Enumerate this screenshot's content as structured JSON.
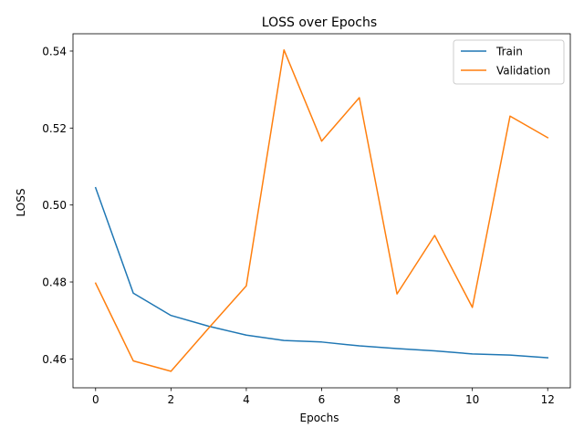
{
  "chart_data": {
    "type": "line",
    "title": "LOSS over Epochs",
    "xlabel": "Epochs",
    "ylabel": "LOSS",
    "x": [
      0,
      1,
      2,
      3,
      4,
      5,
      6,
      7,
      8,
      9,
      10,
      11,
      12
    ],
    "xlim": [
      -0.6,
      12.6
    ],
    "ylim": [
      0.4525,
      0.5445
    ],
    "xticks": [
      0,
      2,
      4,
      6,
      8,
      10,
      12
    ],
    "yticks": [
      0.46,
      0.48,
      0.5,
      0.52,
      0.54
    ],
    "xtick_labels": [
      "0",
      "2",
      "4",
      "6",
      "8",
      "10",
      "12"
    ],
    "ytick_labels": [
      "0.46",
      "0.48",
      "0.50",
      "0.52",
      "0.54"
    ],
    "grid": false,
    "legend_position": "top-right",
    "series": [
      {
        "name": "Train",
        "color": "#1f77b4",
        "values": [
          0.5045,
          0.4771,
          0.4713,
          0.4685,
          0.4662,
          0.4648,
          0.4644,
          0.4634,
          0.4627,
          0.4621,
          0.4613,
          0.461,
          0.4603
        ]
      },
      {
        "name": "Validation",
        "color": "#ff7f0e",
        "values": [
          0.4797,
          0.4595,
          0.4568,
          0.468,
          0.479,
          0.5403,
          0.5166,
          0.5279,
          0.4769,
          0.4921,
          0.4734,
          0.5231,
          0.5175
        ]
      }
    ]
  }
}
